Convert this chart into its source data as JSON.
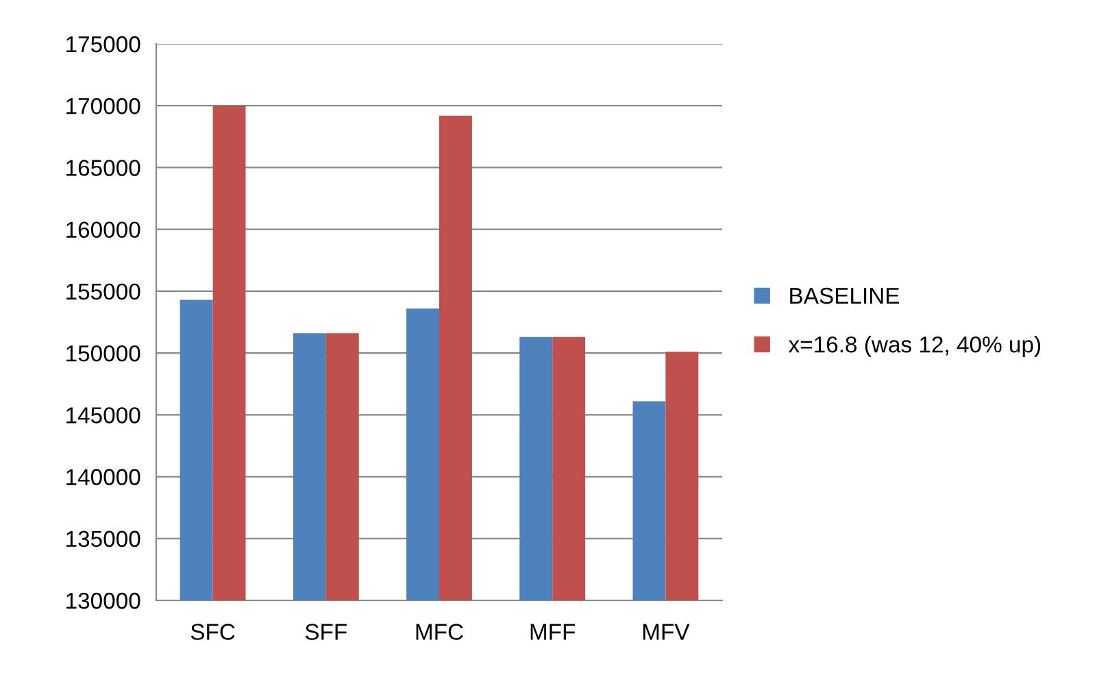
{
  "chart_data": {
    "type": "bar",
    "categories": [
      "SFC",
      "SFF",
      "MFC",
      "MFF",
      "MFV"
    ],
    "series": [
      {
        "name": "BASELINE",
        "color": "#4f81bd",
        "values": [
          154300,
          151600,
          153600,
          151300,
          146100
        ]
      },
      {
        "name": "x=16.8 (was 12, 40% up)",
        "color": "#c0504d",
        "values": [
          170000,
          151600,
          169200,
          151300,
          150100
        ]
      }
    ],
    "ylim": [
      130000,
      175000
    ],
    "yticks": [
      130000,
      135000,
      140000,
      145000,
      150000,
      155000,
      160000,
      165000,
      170000,
      175000
    ],
    "grid": "y",
    "legend": "right"
  }
}
